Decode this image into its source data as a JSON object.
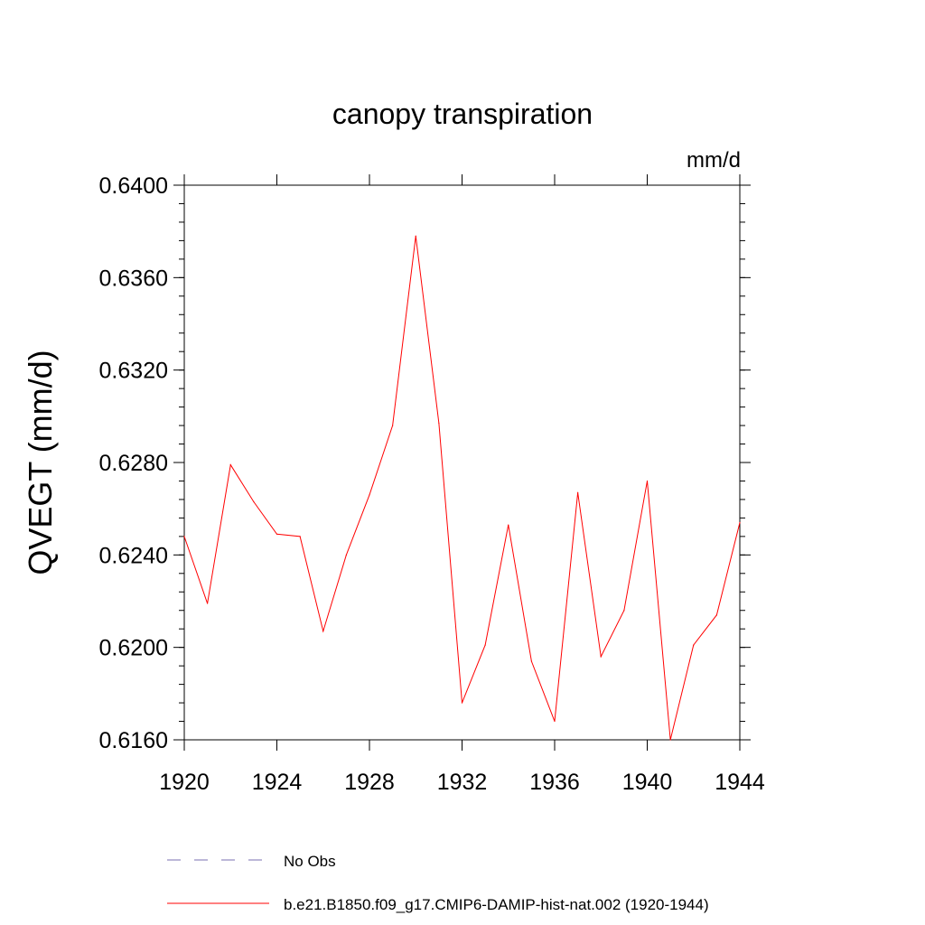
{
  "chart_data": {
    "type": "line",
    "title": "canopy transpiration",
    "units_label": "mm/d",
    "ylabel": "QVEGT  (mm/d)",
    "xlabel": "",
    "xlim": [
      1920,
      1944
    ],
    "ylim": [
      0.616,
      0.64
    ],
    "x_ticks": [
      1920,
      1924,
      1928,
      1932,
      1936,
      1940,
      1944
    ],
    "x_tick_labels": [
      "1920",
      "1924",
      "1928",
      "1932",
      "1936",
      "1940",
      "1944"
    ],
    "y_ticks": [
      0.616,
      0.62,
      0.624,
      0.628,
      0.632,
      0.636,
      0.64
    ],
    "y_tick_labels": [
      "0.6160",
      "0.6200",
      "0.6240",
      "0.6280",
      "0.6320",
      "0.6360",
      "0.6400"
    ],
    "grid": false,
    "legend_position": "bottom",
    "series": [
      {
        "name": "No Obs",
        "color": "#7a6fb0",
        "dash": true,
        "x": [],
        "values": []
      },
      {
        "name": "b.e21.B1850.f09_g17.CMIP6-DAMIP-hist-nat.002 (1920-1944)",
        "color": "#ff0000",
        "dash": false,
        "x": [
          1920,
          1921,
          1922,
          1923,
          1924,
          1925,
          1926,
          1927,
          1928,
          1929,
          1930,
          1931,
          1932,
          1933,
          1934,
          1935,
          1936,
          1937,
          1938,
          1939,
          1940,
          1941,
          1942,
          1943,
          1944
        ],
        "values": [
          0.6248,
          0.6219,
          0.6279,
          0.6263,
          0.6249,
          0.6248,
          0.6207,
          0.624,
          0.6266,
          0.6296,
          0.6378,
          0.6297,
          0.6176,
          0.6201,
          0.6253,
          0.6194,
          0.6168,
          0.6267,
          0.6196,
          0.6216,
          0.6272,
          0.616,
          0.6201,
          0.6214,
          0.6254
        ]
      }
    ]
  }
}
